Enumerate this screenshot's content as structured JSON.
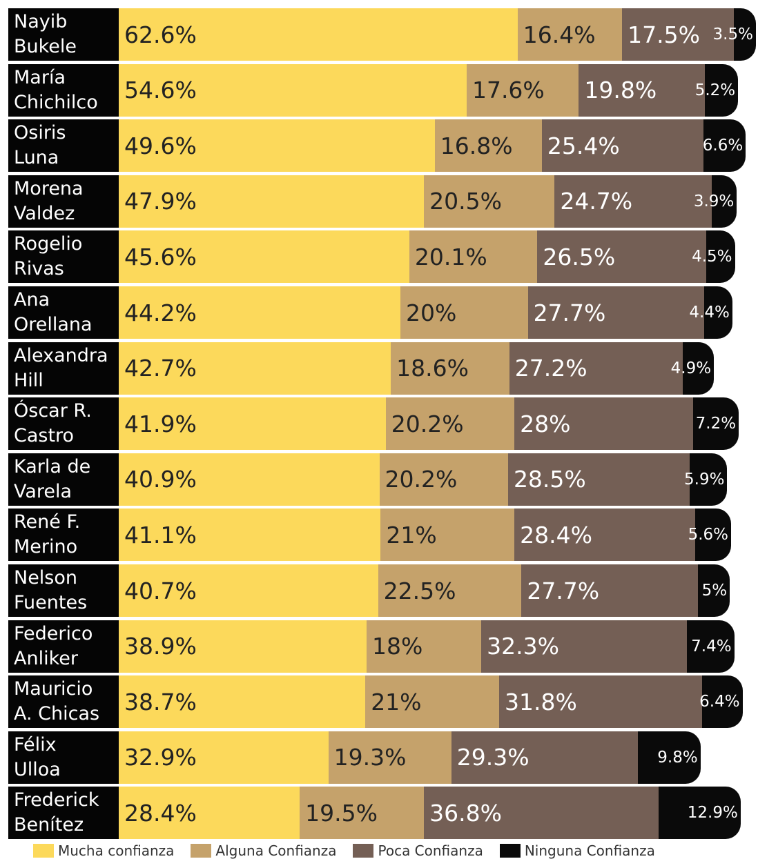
{
  "chart_data": {
    "type": "stacked_bar_horizontal",
    "categories": [
      "Nayib\nBukele",
      "María\nChichilco",
      "Osiris\nLuna",
      "Morena\nValdez",
      "Rogelio\nRivas",
      "Ana\nOrellana",
      "Alexandra\nHill",
      "Óscar R.\nCastro",
      "Karla de\nVarela",
      "René F.\nMerino",
      "Nelson\nFuentes",
      "Federico\nAnliker",
      "Mauricio\nA. Chicas",
      "Félix\nUlloa",
      "Frederick\nBenítez"
    ],
    "series": [
      {
        "name": "Mucha confianza",
        "color": "#fcd95b",
        "values": [
          62.6,
          54.6,
          49.6,
          47.9,
          45.6,
          44.2,
          42.7,
          41.9,
          40.9,
          41.1,
          40.7,
          38.9,
          38.7,
          32.9,
          28.4
        ],
        "value_labels": [
          "62.6%",
          "54.6%",
          "49.6%",
          "47.9%",
          "45.6%",
          "44.2%",
          "42.7%",
          "41.9%",
          "40.9%",
          "41.1%",
          "40.7%",
          "38.9%",
          "38.7%",
          "32.9%",
          "28.4%"
        ]
      },
      {
        "name": "Alguna Confianza",
        "color": "#c5a26b",
        "values": [
          16.4,
          17.6,
          16.8,
          20.5,
          20.1,
          20,
          18.6,
          20.2,
          20.2,
          21,
          22.5,
          18,
          21,
          19.3,
          19.5
        ],
        "value_labels": [
          "16.4%",
          "17.6%",
          "16.8%",
          "20.5%",
          "20.1%",
          "20%",
          "18.6%",
          "20.2%",
          "20.2%",
          "21%",
          "22.5%",
          "18%",
          "21%",
          "19.3%",
          "19.5%"
        ]
      },
      {
        "name": "Poca Confianza",
        "color": "#745f55",
        "values": [
          17.5,
          19.8,
          25.4,
          24.7,
          26.5,
          27.7,
          27.2,
          28,
          28.5,
          28.4,
          27.7,
          32.3,
          31.8,
          29.3,
          36.8
        ],
        "value_labels": [
          "17.5%",
          "19.8%",
          "25.4%",
          "24.7%",
          "26.5%",
          "27.7%",
          "27.2%",
          "28%",
          "28.5%",
          "28.4%",
          "27.7%",
          "32.3%",
          "31.8%",
          "29.3%",
          "36.8%"
        ]
      },
      {
        "name": "Ninguna Confianza",
        "color": "#0a0a0a",
        "values": [
          3.5,
          5.2,
          6.6,
          3.9,
          4.5,
          4.4,
          4.9,
          7.2,
          5.9,
          5.6,
          5,
          7.4,
          6.4,
          9.8,
          12.9
        ],
        "value_labels": [
          "3.5%",
          "5.2%",
          "6.6%",
          "3.9%",
          "4.5%",
          "4.4%",
          "4.9%",
          "7.2%",
          "5.9%",
          "5.6%",
          "5%",
          "7.4%",
          "6.4%",
          "9.8%",
          "12.9%"
        ]
      }
    ]
  }
}
